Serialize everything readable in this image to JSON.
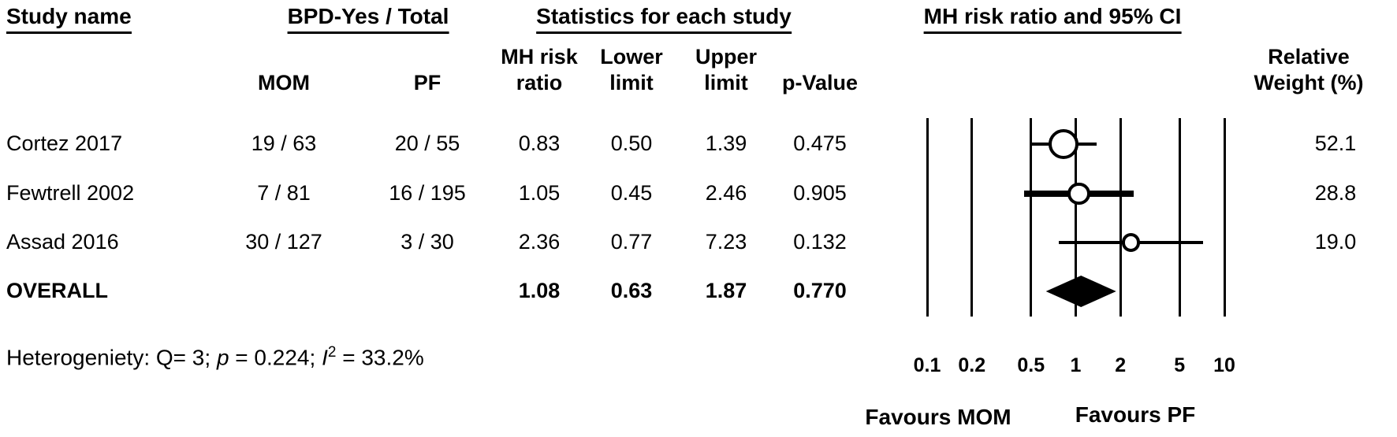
{
  "headers": {
    "study_name": "Study name",
    "bpd_total": "BPD-Yes / Total",
    "statistics": "Statistics for each study",
    "plot": "MH risk ratio and 95% CI"
  },
  "columns": {
    "mom": "MOM",
    "pf": "PF",
    "rr_line1": "MH risk",
    "rr_line2": "ratio",
    "lower_line1": "Lower",
    "lower_line2": "limit",
    "upper_line1": "Upper",
    "upper_line2": "limit",
    "p_value": "p-Value",
    "weight_line1": "Relative",
    "weight_line2": "Weight (%)"
  },
  "rows": [
    {
      "study": "Cortez 2017",
      "mom": "19 / 63",
      "pf": "20 / 55",
      "rr": "0.83",
      "lower": "0.50",
      "upper": "1.39",
      "p": "0.475",
      "weight": "52.1"
    },
    {
      "study": "Fewtrell 2002",
      "mom": "7 / 81",
      "pf": "16 / 195",
      "rr": "1.05",
      "lower": "0.45",
      "upper": "2.46",
      "p": "0.905",
      "weight": "28.8"
    },
    {
      "study": "Assad 2016",
      "mom": "30 / 127",
      "pf": "3 / 30",
      "rr": "2.36",
      "lower": "0.77",
      "upper": "7.23",
      "p": "0.132",
      "weight": "19.0"
    }
  ],
  "overall_row": {
    "study": "OVERALL",
    "rr": "1.08",
    "lower": "0.63",
    "upper": "1.87",
    "p": "0.770"
  },
  "heterogeneity": {
    "prefix": "Heterogeniety: Q= 3; ",
    "p_symbol": "p",
    "p_rest": " = 0.224; ",
    "i_symbol": "I",
    "i_sup": "2",
    "i_rest": " = 33.2%"
  },
  "chart_data": {
    "type": "forest",
    "x_scale": "log10",
    "x_range": [
      0.1,
      10
    ],
    "x_ticks": [
      0.1,
      0.2,
      0.5,
      1,
      2,
      5,
      10
    ],
    "effect_measure": "MH risk ratio",
    "ci_level": "95%",
    "studies": [
      {
        "name": "Cortez 2017",
        "mom_events_total": "19 / 63",
        "pf_events_total": "20 / 55",
        "rr": 0.83,
        "ci_lower": 0.5,
        "ci_upper": 1.39,
        "p_value": 0.475,
        "weight_pct": 52.1
      },
      {
        "name": "Fewtrell 2002",
        "mom_events_total": "7 / 81",
        "pf_events_total": "16 / 195",
        "rr": 1.05,
        "ci_lower": 0.45,
        "ci_upper": 2.46,
        "p_value": 0.905,
        "weight_pct": 28.8
      },
      {
        "name": "Assad 2016",
        "mom_events_total": "30 / 127",
        "pf_events_total": "3 / 30",
        "rr": 2.36,
        "ci_lower": 0.77,
        "ci_upper": 7.23,
        "p_value": 0.132,
        "weight_pct": 19.0
      }
    ],
    "overall": {
      "name": "OVERALL",
      "rr": 1.08,
      "ci_lower": 0.63,
      "ci_upper": 1.87,
      "p_value": 0.77
    },
    "heterogeneity": {
      "Q": 3,
      "p": 0.224,
      "I2_pct": 33.2
    },
    "favours_left": "Favours MOM",
    "favours_right": "Favours PF"
  }
}
